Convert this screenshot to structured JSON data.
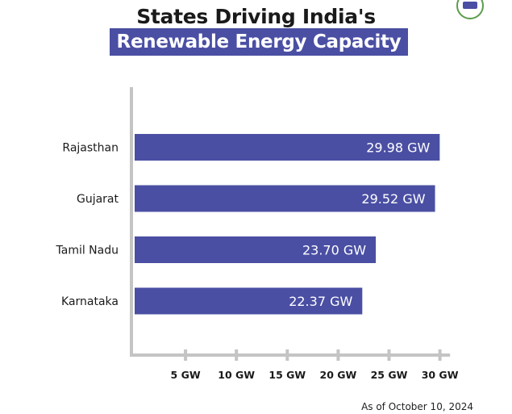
{
  "header": {
    "title_line1": "States Driving India's",
    "title_line2": "Renewable Energy Capacity"
  },
  "footnote": "As of October 10, 2024",
  "colors": {
    "bar": "#4a4fa3",
    "axis": "#c4c4c4",
    "text": "#1a1a1a"
  },
  "chart_data": {
    "type": "bar",
    "orientation": "horizontal",
    "categories": [
      "Rajasthan",
      "Gujarat",
      "Tamil Nadu",
      "Karnataka"
    ],
    "values": [
      29.98,
      29.52,
      23.7,
      22.37
    ],
    "data_labels": [
      "29.98 GW",
      "29.52 GW",
      "23.70 GW",
      "22.37 GW"
    ],
    "x_ticks": [
      5,
      10,
      15,
      20,
      25,
      30
    ],
    "x_tick_labels": [
      "5 GW",
      "10 GW",
      "15 GW",
      "20 GW",
      "25 GW",
      "30 GW"
    ],
    "xlim": [
      0,
      31
    ],
    "grid": false,
    "legend": "none",
    "title": "States Driving India's Renewable Energy Capacity"
  }
}
